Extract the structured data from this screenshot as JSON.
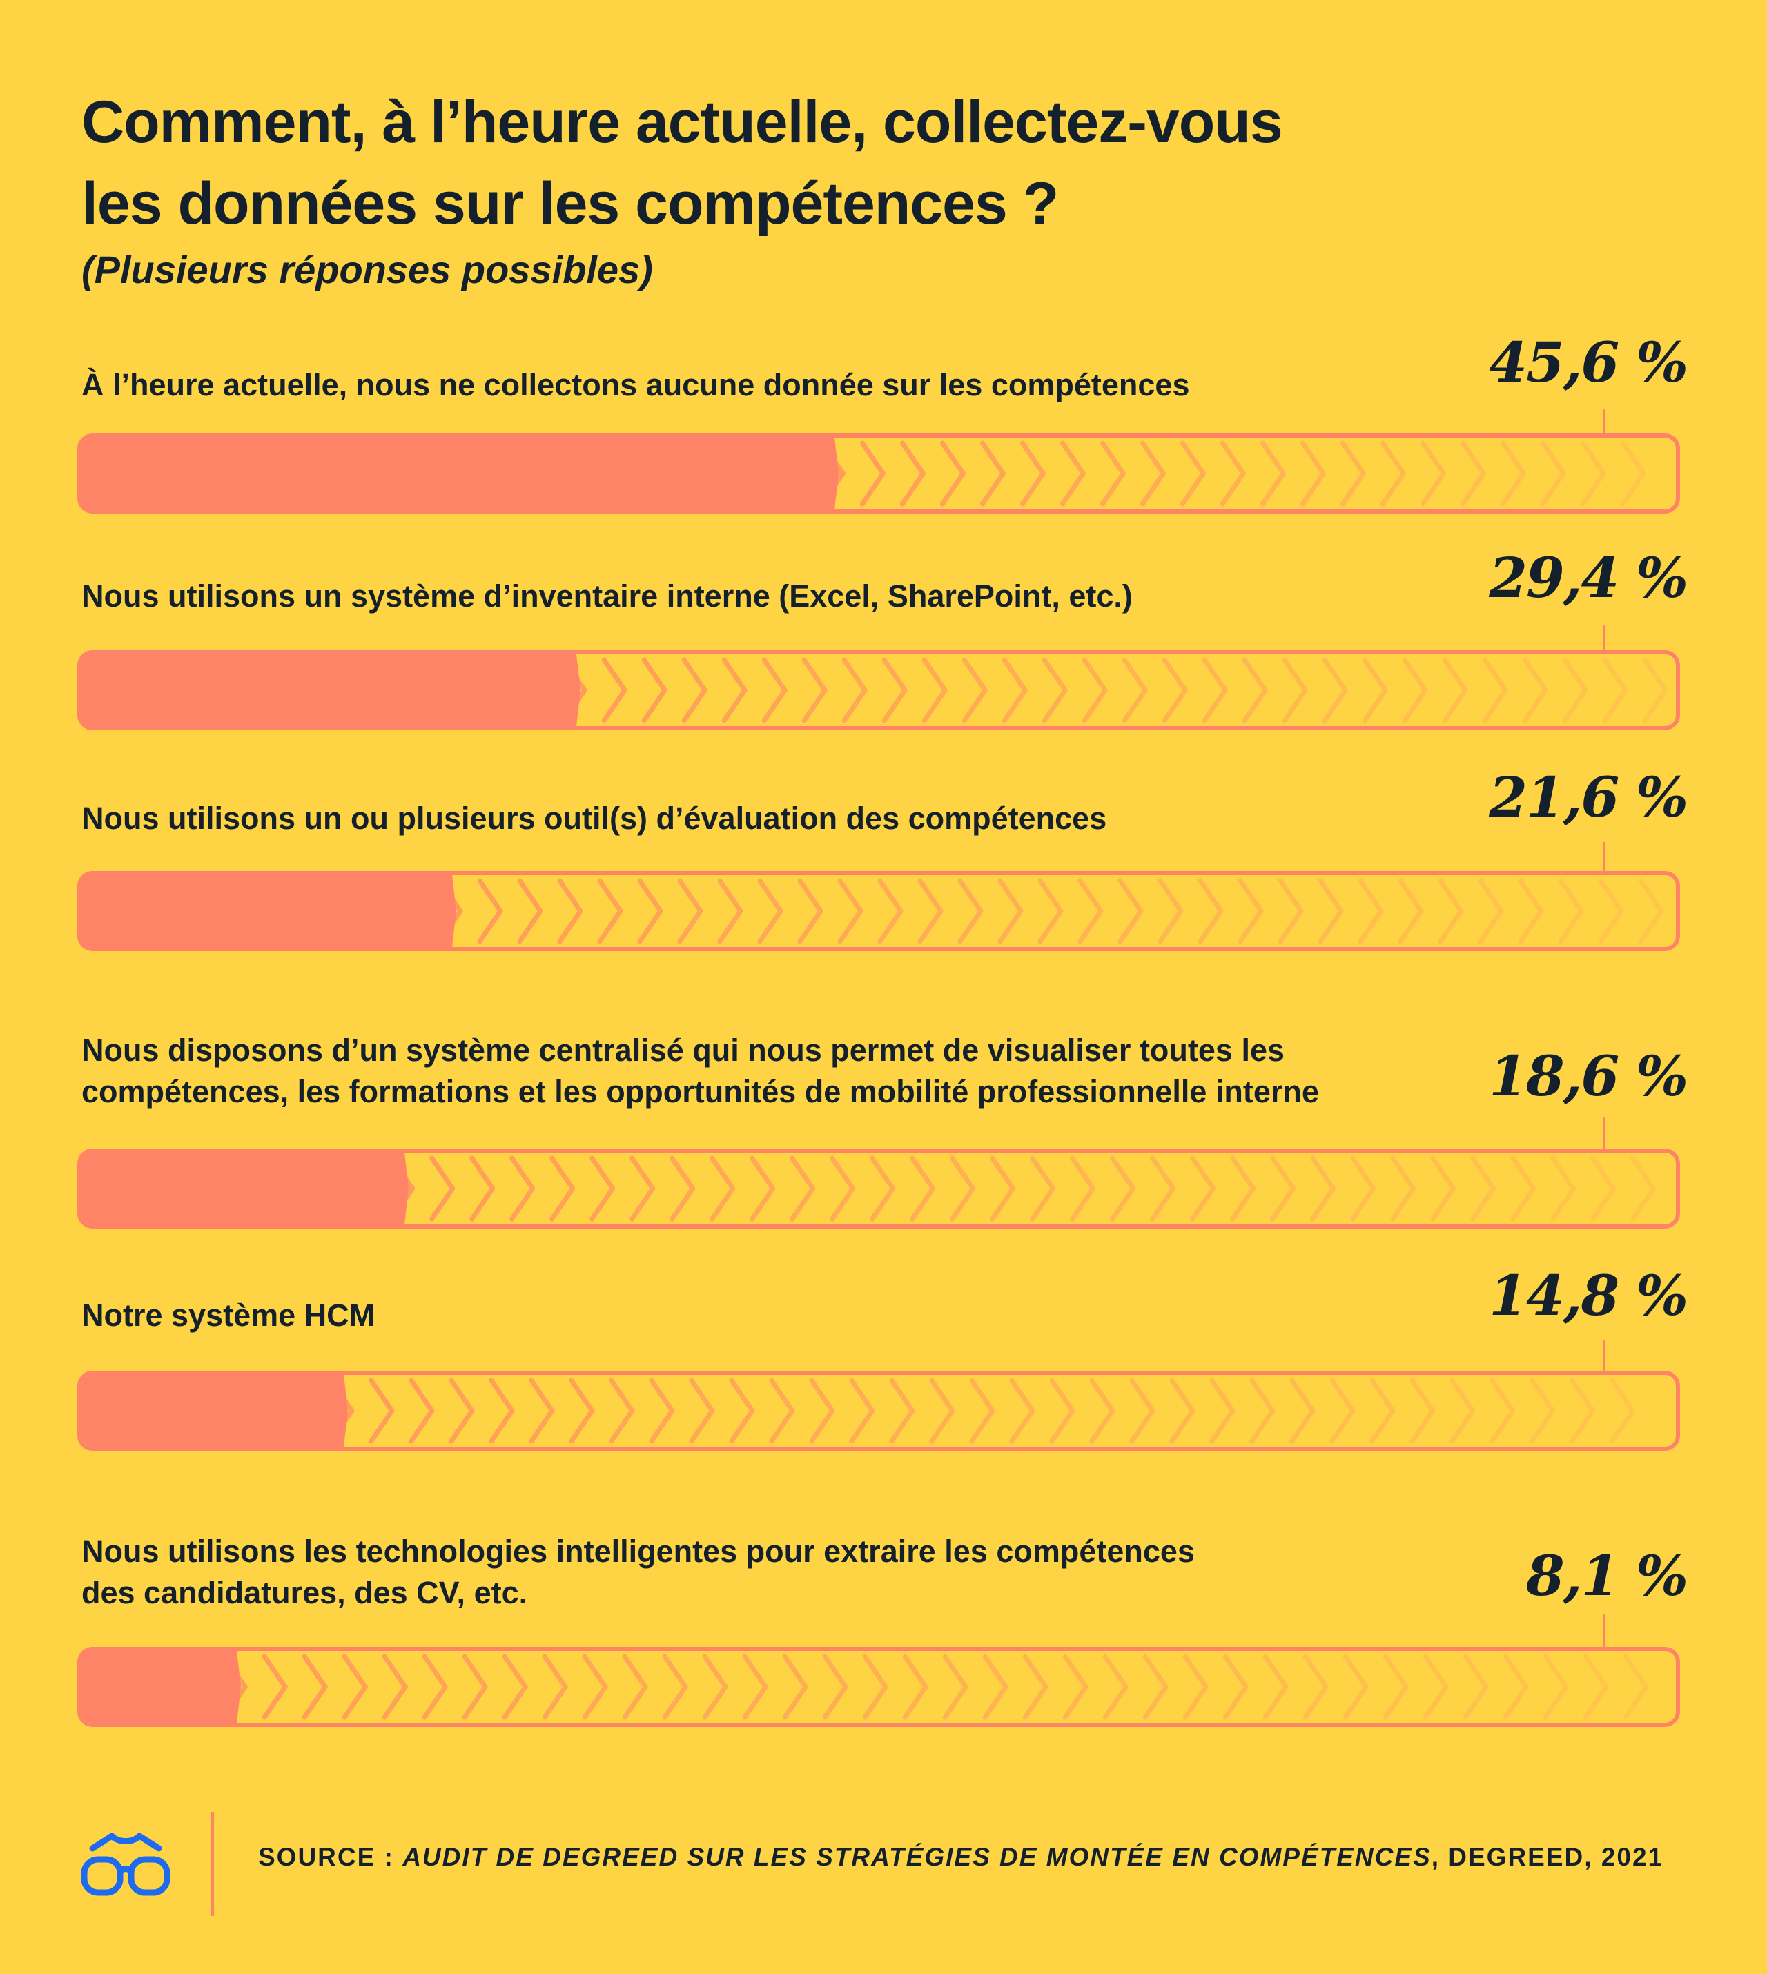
{
  "chart_data": {
    "type": "bar",
    "orientation": "horizontal",
    "title_lines": [
      "Comment, à l’heure actuelle, collectez-vous",
      "les données sur les compétences ?"
    ],
    "subtitle": "(Plusieurs réponses possibles)",
    "value_suffix": " %",
    "xlim": [
      0,
      100
    ],
    "items": [
      {
        "label_lines": [
          "À l’heure actuelle, nous ne collectons aucune donnée sur les compétences"
        ],
        "value": 45.6,
        "display": "45,6 %"
      },
      {
        "label_lines": [
          "Nous utilisons un système d’inventaire interne (Excel, SharePoint, etc.)"
        ],
        "value": 29.4,
        "display": "29,4 %"
      },
      {
        "label_lines": [
          "Nous utilisons un ou plusieurs outil(s) d’évaluation des compétences"
        ],
        "value": 21.6,
        "display": "21,6 %"
      },
      {
        "label_lines": [
          "Nous disposons d’un système centralisé qui nous permet de visualiser toutes les",
          "compétences, les formations et les opportunités de mobilité professionnelle interne"
        ],
        "value": 18.6,
        "display": "18,6 %"
      },
      {
        "label_lines": [
          "Notre système HCM"
        ],
        "value": 14.8,
        "display": "14,8 %"
      },
      {
        "label_lines": [
          "Nous utilisons les technologies intelligentes pour extraire les compétences",
          "des candidatures, des CV, etc."
        ],
        "value": 8.1,
        "display": "8,1 %"
      }
    ]
  },
  "footer": {
    "source_prefix": "SOURCE : ",
    "source_title": "AUDIT DE DEGREED SUR LES STRATÉGIES DE MONTÉE EN COMPÉTENCES",
    "source_suffix": ", DEGREED, 2021",
    "logo_icon": "glasses-icon"
  },
  "colors": {
    "background": "#FFD444",
    "bar": "#FF8366",
    "chevron": "#FF9A5C",
    "text": "#14202B",
    "logo": "#1F6BEF"
  }
}
